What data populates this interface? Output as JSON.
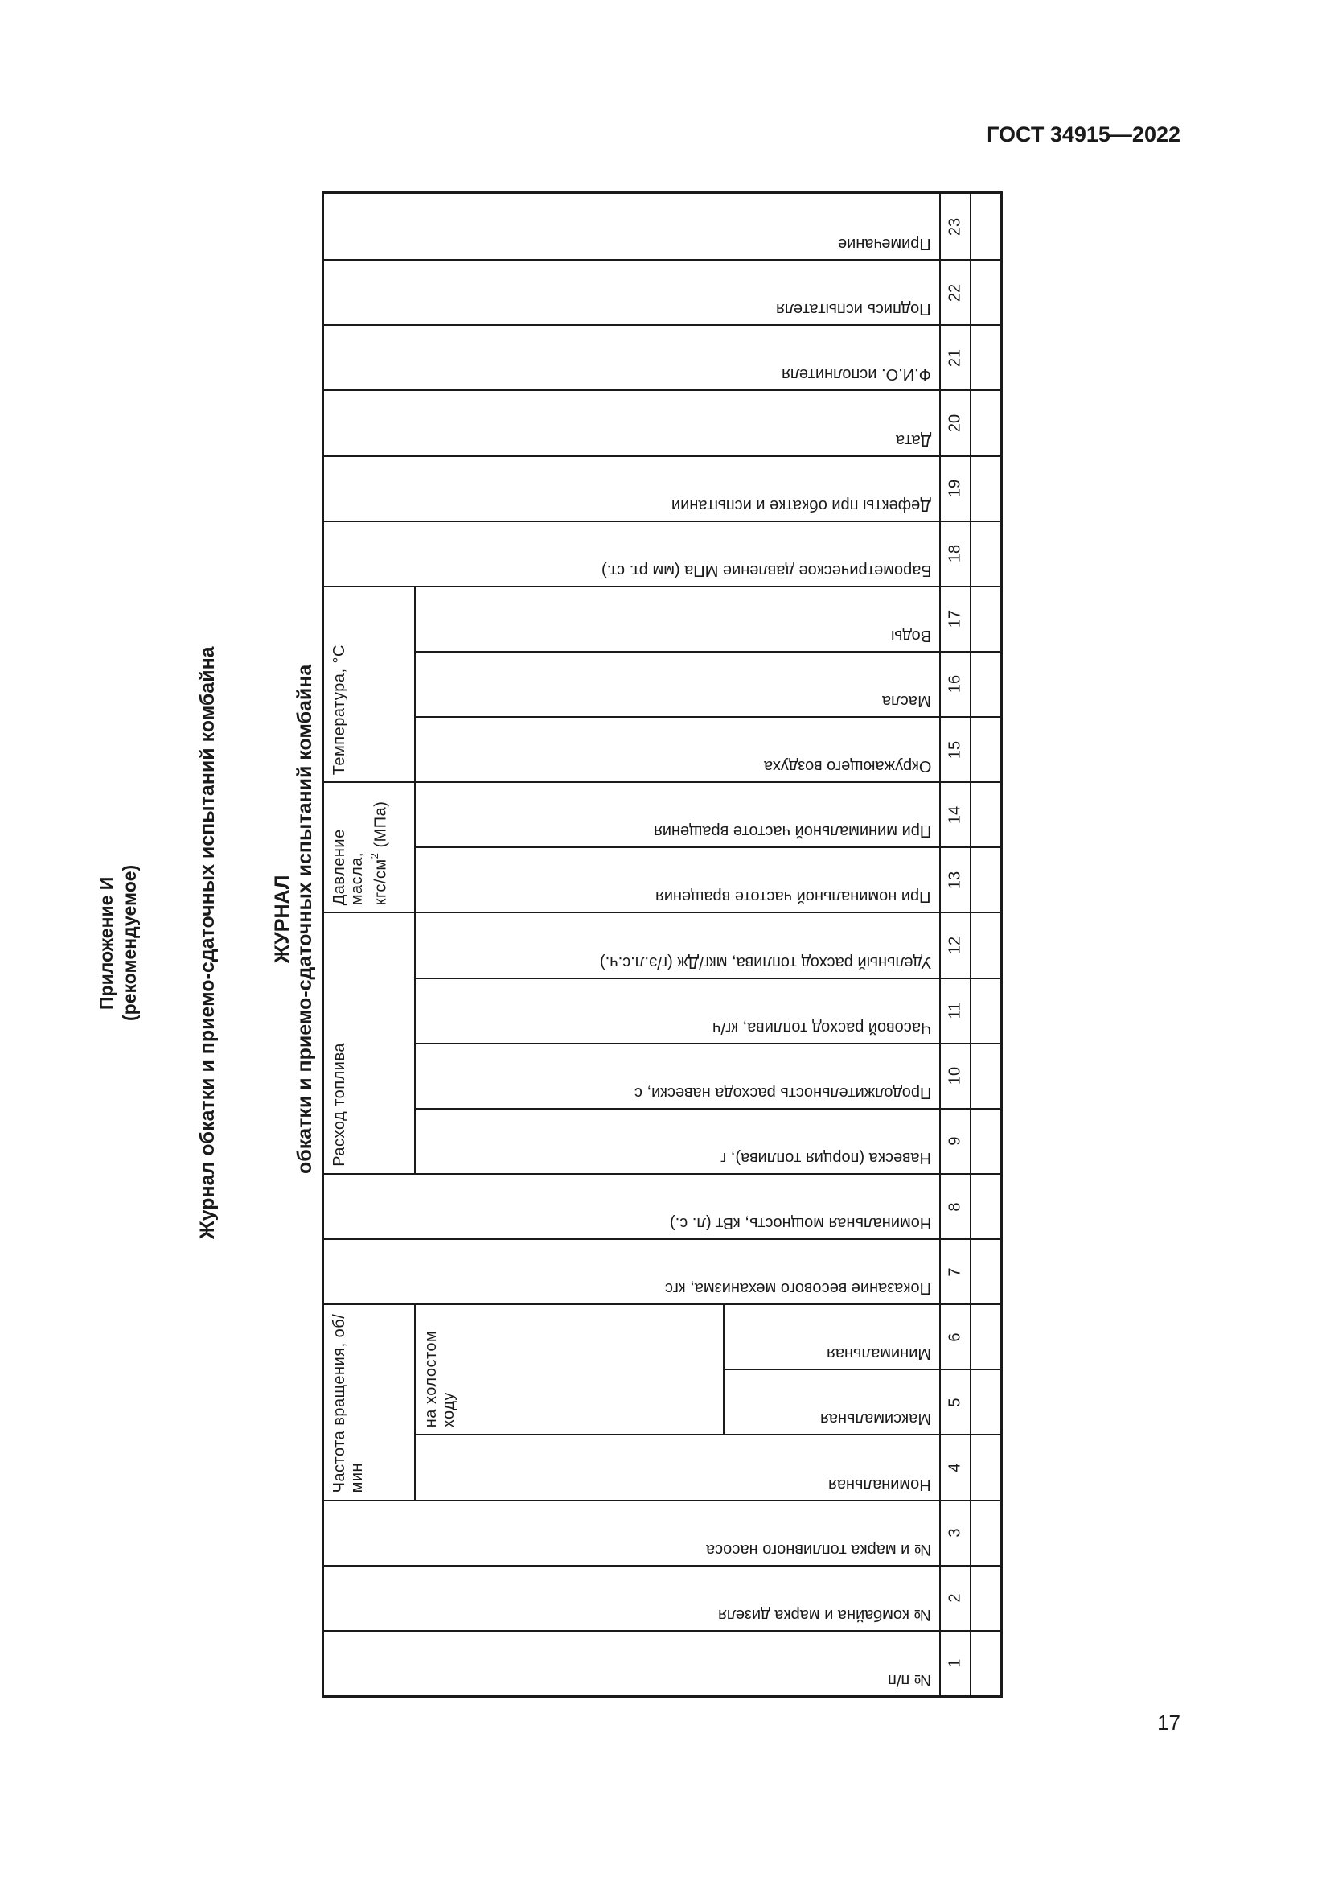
{
  "header": {
    "standard": "ГОСТ 34915—2022"
  },
  "appendix": {
    "line1": "Приложение И",
    "line2": "(рекомендуемое)"
  },
  "appendix_title": "Журнал обкатки и приемо-сдаточных испытаний комбайна",
  "journal": {
    "title": "ЖУРНАЛ",
    "subtitle": "обкатки и приемо-сдаточных испытаний комбайна"
  },
  "groups": {
    "rotation": "Частота вращения, об/мин",
    "idle": "на холостом ходу",
    "fuel": "Расход топлива",
    "pressure_1": "Давление масла,",
    "pressure_2": "кгс/см",
    "pressure_sup": "2",
    "pressure_3": " (МПа)",
    "temperature": "Температура, °С"
  },
  "columns": [
    {
      "num": "1",
      "label": "№ п/п"
    },
    {
      "num": "2",
      "label": "№ комбайна и марка дизеля"
    },
    {
      "num": "3",
      "label": "№ и марка топливного насоса"
    },
    {
      "num": "4",
      "label": "Номинальная"
    },
    {
      "num": "5",
      "label": "Максимальная"
    },
    {
      "num": "6",
      "label": "Минимальная"
    },
    {
      "num": "7",
      "label": "Показание весового механизма, кгс"
    },
    {
      "num": "8",
      "label": "Номинальная мощность, кВт (л. с.)"
    },
    {
      "num": "9",
      "label": "Навеска (порция топлива), г"
    },
    {
      "num": "10",
      "label": "Продолжительность расхода навески, с"
    },
    {
      "num": "11",
      "label": "Часовой расход топлива, кг/ч"
    },
    {
      "num": "12",
      "label": "Удельный расход топлива, мкг/Дж (г/э.л.с.ч.)"
    },
    {
      "num": "13",
      "label": "При номинальной частоте вращения"
    },
    {
      "num": "14",
      "label": "При минимальной частоте вращения"
    },
    {
      "num": "15",
      "label": "Окружающего воздуха"
    },
    {
      "num": "16",
      "label": "Масла"
    },
    {
      "num": "17",
      "label": "Воды"
    },
    {
      "num": "18",
      "label": "Барометрическое давление МПа (мм рт. ст.)"
    },
    {
      "num": "19",
      "label": "Дефекты при обкатке и испытании"
    },
    {
      "num": "20",
      "label": "Дата"
    },
    {
      "num": "21",
      "label": "Ф.И.О. исполнителя"
    },
    {
      "num": "22",
      "label": "Подпись испытателя"
    },
    {
      "num": "23",
      "label": "Примечание"
    }
  ],
  "page_number": "17"
}
